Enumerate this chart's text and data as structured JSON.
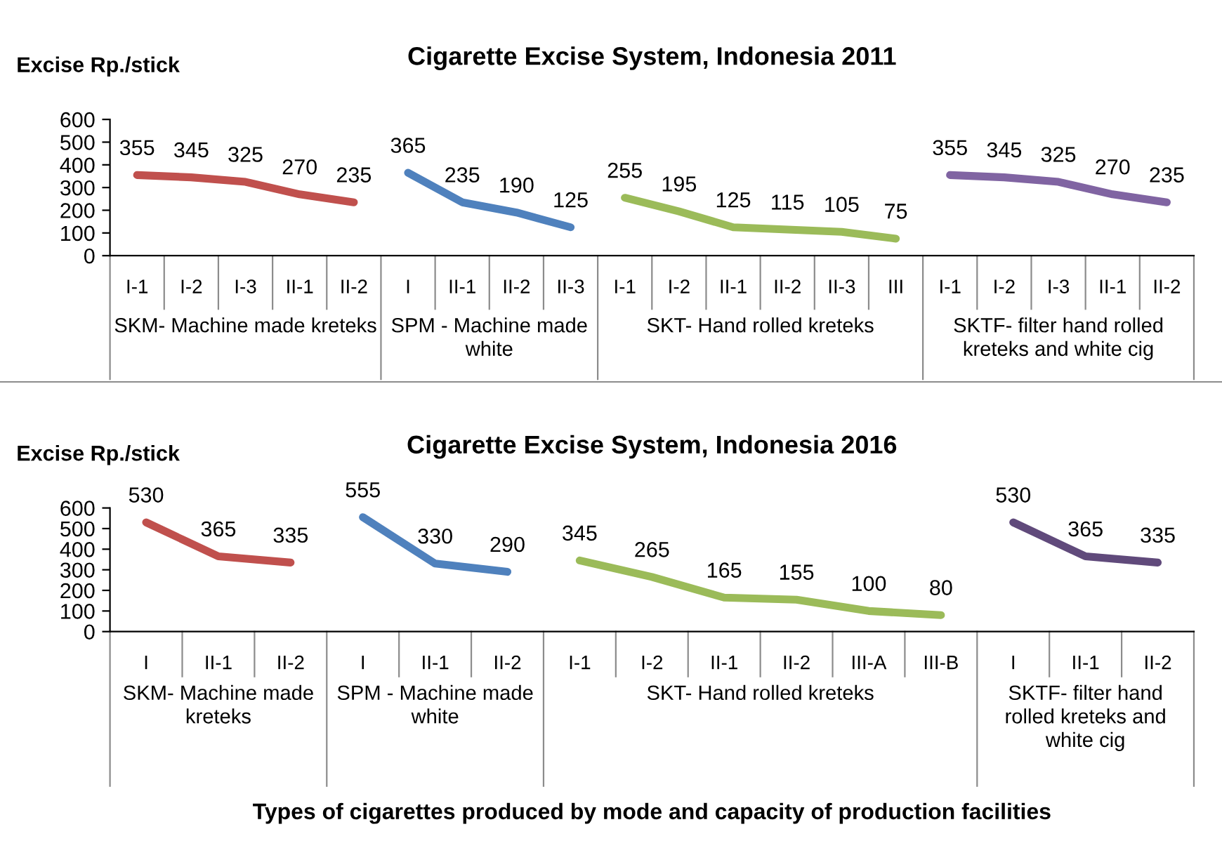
{
  "chart_data": [
    {
      "type": "line",
      "title": "Cigarette Excise System, Indonesia 2011",
      "ylabel": "Excise Rp./stick",
      "categories": [
        "I-1",
        "I-2",
        "I-3",
        "II-1",
        "II-2",
        "I",
        "II-1",
        "II-2",
        "II-3",
        "I-1",
        "I-2",
        "II-1",
        "II-2",
        "II-3",
        "III",
        "I-1",
        "I-2",
        "I-3",
        "II-1",
        "II-2"
      ],
      "series": [
        {
          "color": "#c0504d",
          "values": [
            355,
            345,
            325,
            270,
            235,
            null,
            null,
            null,
            null,
            null,
            null,
            null,
            null,
            null,
            null,
            null,
            null,
            null,
            null,
            null
          ]
        },
        {
          "color": "#4f81bd",
          "values": [
            null,
            null,
            null,
            null,
            null,
            365,
            235,
            190,
            125,
            null,
            null,
            null,
            null,
            null,
            null,
            null,
            null,
            null,
            null,
            null
          ]
        },
        {
          "color": "#9bbb59",
          "values": [
            null,
            null,
            null,
            null,
            null,
            null,
            null,
            null,
            null,
            255,
            195,
            125,
            115,
            105,
            75,
            null,
            null,
            null,
            null,
            null
          ]
        },
        {
          "color": "#8064a2",
          "values": [
            null,
            null,
            null,
            null,
            null,
            null,
            null,
            null,
            null,
            null,
            null,
            null,
            null,
            null,
            null,
            355,
            345,
            325,
            270,
            235
          ]
        }
      ],
      "annotations": [
        "SKM- Machine made kreteks",
        "SPM - Machine made white",
        "SKT- Hand rolled kreteks",
        "SKTF- filter hand rolled kreteks and white cig"
      ],
      "ylim": [
        0,
        600
      ],
      "yticks": [
        0,
        100,
        200,
        300,
        400,
        500,
        600
      ],
      "data_labels": true
    },
    {
      "type": "line",
      "title": "Cigarette Excise System, Indonesia 2016",
      "ylabel": "Excise Rp./stick",
      "xlabel": "Types of cigarettes produced by mode and capacity of production facilities",
      "categories": [
        "I",
        "II-1",
        "II-2",
        "I",
        "II-1",
        "II-2",
        "I-1",
        "I-2",
        "II-1",
        "II-2",
        "III-A",
        "III-B",
        "I",
        "II-1",
        "II-2"
      ],
      "series": [
        {
          "color": "#c0504d",
          "values": [
            530,
            365,
            335,
            null,
            null,
            null,
            null,
            null,
            null,
            null,
            null,
            null,
            null,
            null,
            null
          ]
        },
        {
          "color": "#4f81bd",
          "values": [
            null,
            null,
            null,
            555,
            330,
            290,
            null,
            null,
            null,
            null,
            null,
            null,
            null,
            null,
            null
          ]
        },
        {
          "color": "#9bbb59",
          "values": [
            null,
            null,
            null,
            null,
            null,
            null,
            345,
            265,
            165,
            155,
            100,
            80,
            null,
            null,
            null
          ]
        },
        {
          "color": "#604a7b",
          "values": [
            null,
            null,
            null,
            null,
            null,
            null,
            null,
            null,
            null,
            null,
            null,
            null,
            530,
            365,
            335
          ]
        }
      ],
      "annotations": [
        "SKM- Machine made kreteks",
        "SPM - Machine made white",
        "SKT- Hand rolled kreteks",
        "SKTF- filter hand rolled kreteks and white cig"
      ],
      "ylim": [
        0,
        600
      ],
      "yticks": [
        0,
        100,
        200,
        300,
        400,
        500,
        600
      ],
      "data_labels": true
    }
  ]
}
